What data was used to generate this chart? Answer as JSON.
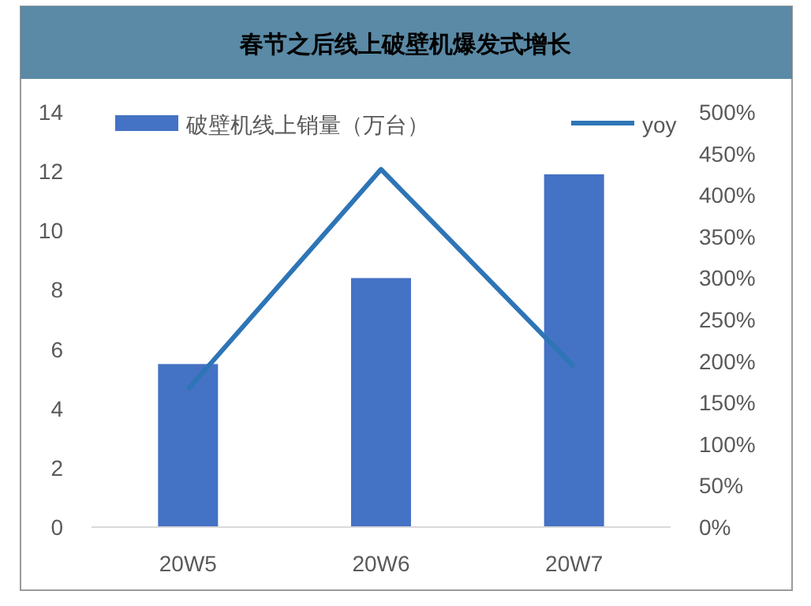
{
  "chart_data": {
    "type": "bar",
    "title": "春节之后线上破壁机爆发式增长",
    "categories": [
      "20W5",
      "20W6",
      "20W7"
    ],
    "series": [
      {
        "name": "破壁机线上销量（万台）",
        "color": "#4472c4",
        "values": [
          5.5,
          8.4,
          11.9
        ]
      },
      {
        "name": "yoy",
        "type": "line",
        "axis": "y2",
        "color": "#2e75b6",
        "values": [
          166,
          431,
          193
        ]
      }
    ],
    "ylim": [
      0,
      14
    ],
    "yticks": [
      0,
      2,
      4,
      6,
      8,
      10,
      12,
      14
    ],
    "y2lim": [
      0,
      500
    ],
    "y2ticks": [
      {
        "value": 0,
        "label": "0%"
      },
      {
        "value": 50,
        "label": "50%"
      },
      {
        "value": 100,
        "label": "100%"
      },
      {
        "value": 150,
        "label": "150%"
      },
      {
        "value": 200,
        "label": "200%"
      },
      {
        "value": 250,
        "label": "250%"
      },
      {
        "value": 300,
        "label": "300%"
      },
      {
        "value": 350,
        "label": "350%"
      },
      {
        "value": 400,
        "label": "400%"
      },
      {
        "value": 450,
        "label": "450%"
      },
      {
        "value": 500,
        "label": "500%"
      }
    ],
    "legend": "top",
    "grid": false,
    "marker": "none"
  }
}
